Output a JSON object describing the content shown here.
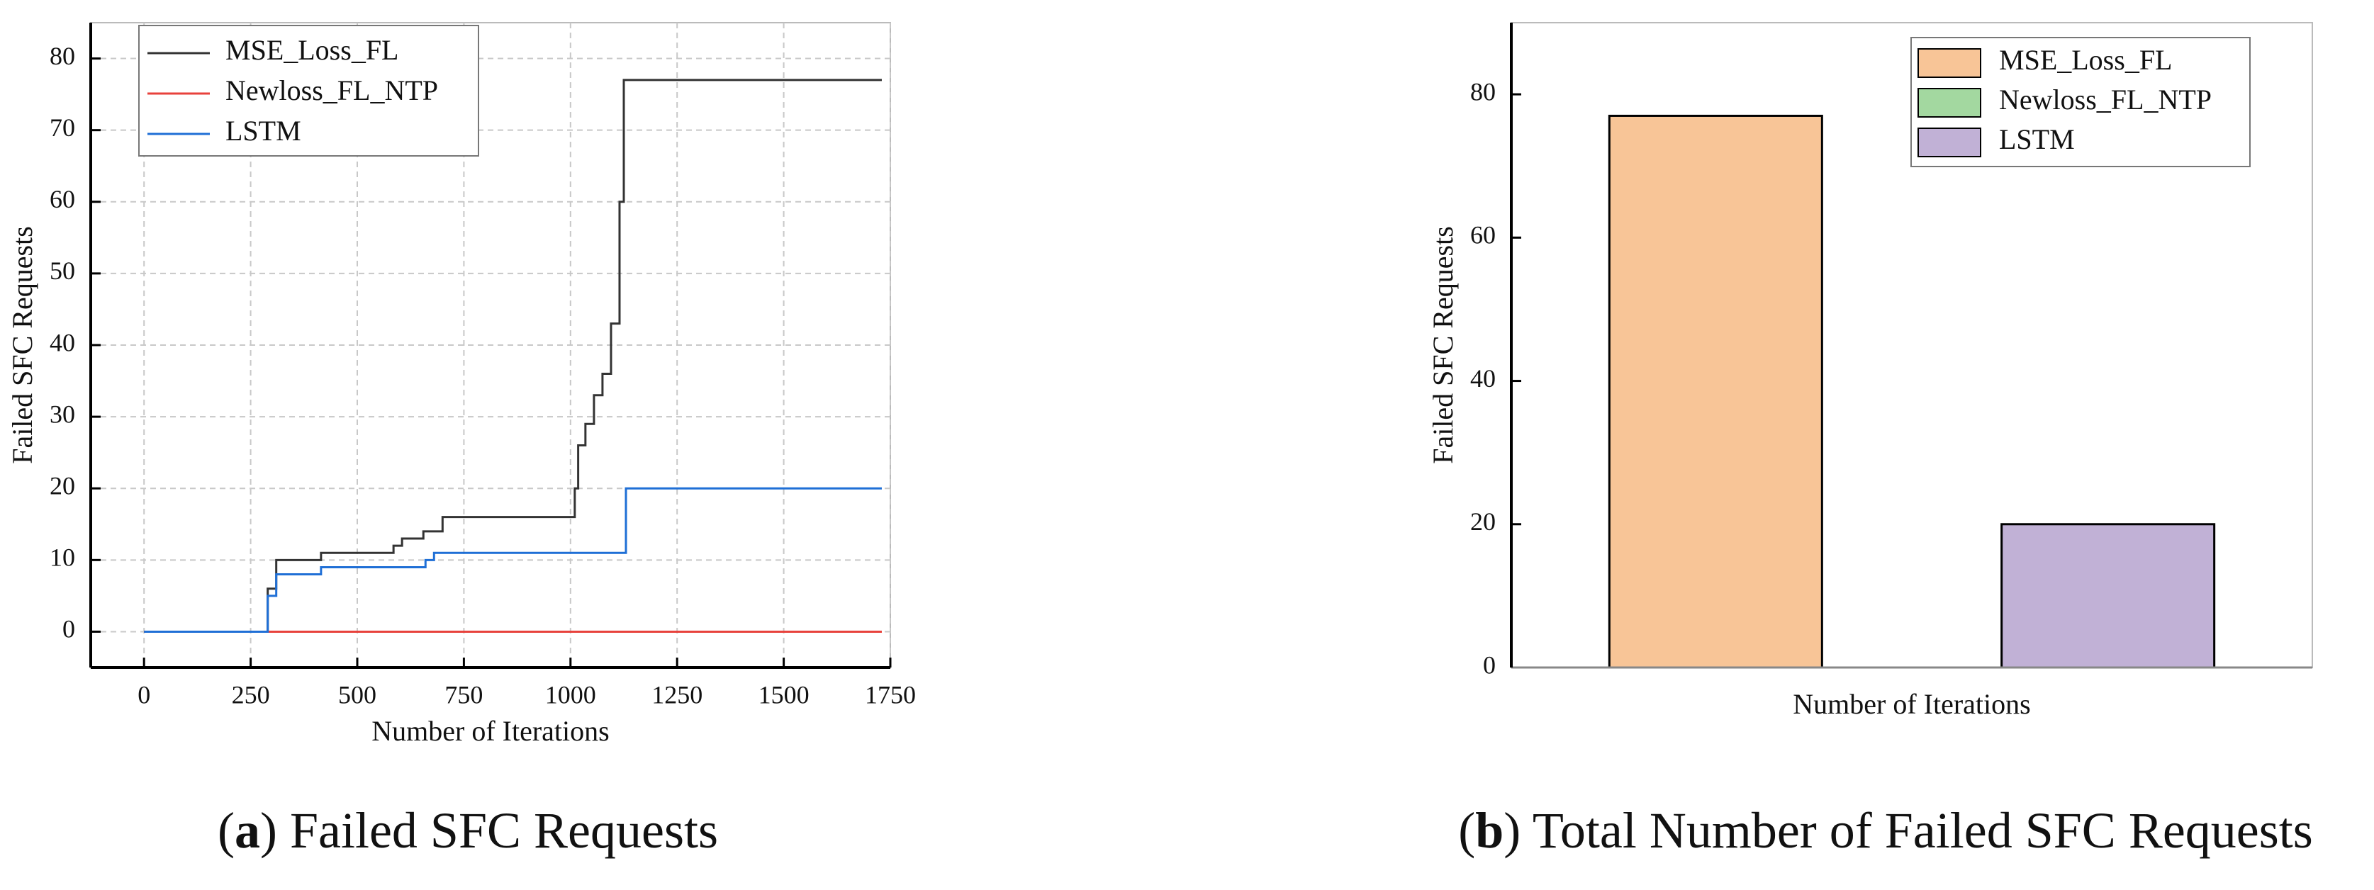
{
  "charts": [
    {
      "type": "line",
      "xlabel": "Number of Iterations",
      "ylabel": "Failed SFC Requests",
      "xlim": [
        -125,
        1750
      ],
      "ylim": [
        -5,
        85
      ],
      "xticks": [
        0,
        250,
        500,
        750,
        1000,
        1250,
        1500,
        1750
      ],
      "yticks": [
        0,
        10,
        20,
        30,
        40,
        50,
        60,
        70,
        80
      ],
      "grid": true,
      "legend": "upper left",
      "series": [
        {
          "name": "MSE_Loss_FL",
          "color": "#333333",
          "x": [
            0,
            290,
            290,
            310,
            310,
            415,
            415,
            585,
            585,
            605,
            605,
            655,
            655,
            700,
            700,
            1010,
            1010,
            1018,
            1018,
            1035,
            1035,
            1055,
            1055,
            1075,
            1075,
            1095,
            1095,
            1115,
            1115,
            1125,
            1125,
            1730
          ],
          "values": [
            0,
            0,
            6,
            6,
            10,
            10,
            11,
            11,
            12,
            12,
            13,
            13,
            14,
            14,
            16,
            16,
            20,
            20,
            26,
            26,
            29,
            29,
            33,
            33,
            36,
            36,
            43,
            43,
            60,
            60,
            77,
            77
          ]
        },
        {
          "name": "Newloss_FL_NTP",
          "color": "#e8423c",
          "x": [
            0,
            1730
          ],
          "values": [
            0,
            0
          ]
        },
        {
          "name": "LSTM",
          "color": "#1f6fd6",
          "x": [
            0,
            290,
            290,
            310,
            310,
            415,
            415,
            660,
            660,
            680,
            680,
            1130,
            1130,
            1730
          ],
          "values": [
            0,
            0,
            5,
            5,
            8,
            8,
            9,
            9,
            10,
            10,
            11,
            11,
            20,
            20
          ]
        }
      ],
      "caption_parts": [
        "(",
        "a",
        ") Failed SFC Requests"
      ]
    },
    {
      "type": "bar",
      "xlabel": "Number of Iterations",
      "ylabel": "Failed SFC Requests",
      "categories": [
        "MSE_Loss_FL",
        "Newloss_FL_NTP",
        "LSTM"
      ],
      "values": [
        77,
        0,
        20
      ],
      "colors": [
        "#f8c597",
        "#a3d8a0",
        "#c1b1d6"
      ],
      "ylim": [
        0,
        90
      ],
      "yticks": [
        0,
        20,
        40,
        60,
        80
      ],
      "legend": "upper right",
      "caption_parts": [
        "(",
        "b",
        ") Total Number of Failed SFC Requests"
      ]
    }
  ]
}
